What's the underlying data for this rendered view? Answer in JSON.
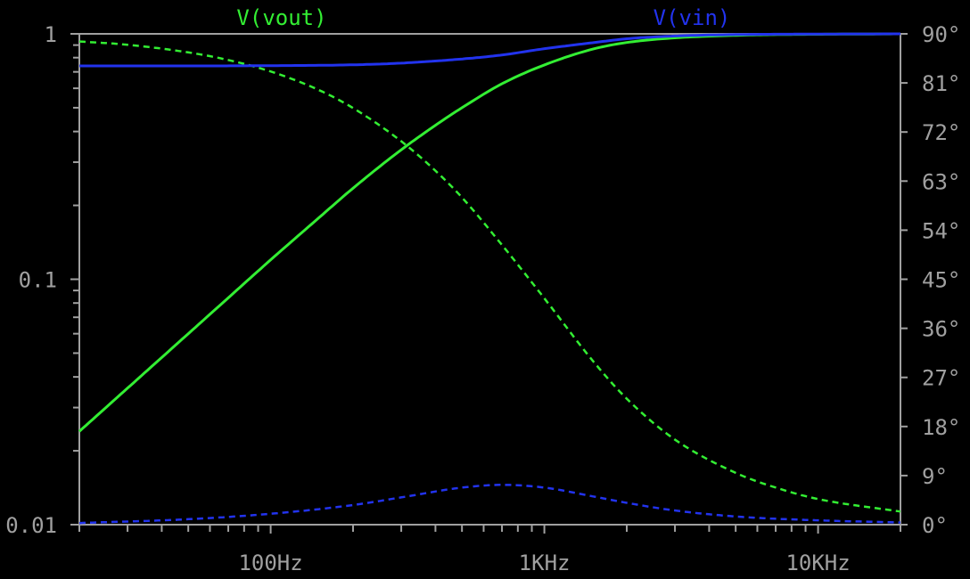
{
  "chart_data": {
    "type": "line",
    "title": "",
    "xlabel": "",
    "ylabel": "",
    "x_scale": "log",
    "xlim": [
      20,
      20000
    ],
    "x_ticks": [
      {
        "value": 100,
        "label": "100Hz"
      },
      {
        "value": 1000,
        "label": "1KHz"
      },
      {
        "value": 10000,
        "label": "10KHz"
      }
    ],
    "y_left": {
      "scale": "log",
      "lim": [
        0.01,
        1
      ],
      "ticks": [
        {
          "value": 1,
          "label": "1"
        },
        {
          "value": 0.1,
          "label": "0.1"
        },
        {
          "value": 0.01,
          "label": "0.01"
        }
      ]
    },
    "y_right": {
      "scale": "linear",
      "unit": "degrees",
      "lim": [
        0,
        90
      ],
      "ticks": [
        {
          "value": 90,
          "label": "90°"
        },
        {
          "value": 81,
          "label": "81°"
        },
        {
          "value": 72,
          "label": "72°"
        },
        {
          "value": 63,
          "label": "63°"
        },
        {
          "value": 54,
          "label": "54°"
        },
        {
          "value": 45,
          "label": "45°"
        },
        {
          "value": 36,
          "label": "36°"
        },
        {
          "value": 27,
          "label": "27°"
        },
        {
          "value": 18,
          "label": "18°"
        },
        {
          "value": 9,
          "label": "9°"
        },
        {
          "value": 0,
          "label": "0°"
        }
      ]
    },
    "grid": false,
    "legend": "top",
    "series": [
      {
        "name": "V(vout)",
        "color": "#33ee33",
        "magnitude": {
          "x": [
            20,
            30,
            50,
            70,
            100,
            150,
            200,
            300,
            400,
            500,
            700,
            1000,
            1500,
            2000,
            3000,
            5000,
            7000,
            10000,
            20000
          ],
          "y": [
            0.024,
            0.036,
            0.06,
            0.084,
            0.12,
            0.178,
            0.235,
            0.337,
            0.424,
            0.5,
            0.626,
            0.747,
            0.866,
            0.922,
            0.963,
            0.986,
            0.993,
            0.996,
            1.0
          ]
        },
        "phase": {
          "x": [
            20,
            30,
            50,
            70,
            100,
            150,
            200,
            300,
            400,
            500,
            700,
            1000,
            1500,
            2000,
            3000,
            5000,
            7000,
            10000,
            20000
          ],
          "y": [
            88.6,
            88.0,
            86.6,
            85.2,
            83.1,
            79.7,
            76.4,
            70.3,
            64.9,
            60.0,
            51.3,
            41.5,
            30.1,
            23.1,
            15.6,
            9.5,
            6.8,
            4.7,
            2.4
          ]
        }
      },
      {
        "name": "V(vin)",
        "color": "#2233ee",
        "magnitude": {
          "x": [
            20,
            50,
            100,
            200,
            300,
            500,
            700,
            1000,
            1500,
            2000,
            3000,
            5000,
            10000,
            20000
          ],
          "y": [
            0.74,
            0.74,
            0.742,
            0.748,
            0.76,
            0.79,
            0.82,
            0.87,
            0.92,
            0.955,
            0.98,
            0.993,
            0.998,
            1.0
          ]
        },
        "phase": {
          "x": [
            20,
            50,
            100,
            200,
            300,
            500,
            700,
            1000,
            1500,
            2000,
            3000,
            5000,
            10000,
            20000
          ],
          "y": [
            0.3,
            1.0,
            2.0,
            3.6,
            5.0,
            6.8,
            7.3,
            6.8,
            5.2,
            4.0,
            2.6,
            1.5,
            0.8,
            0.4
          ]
        }
      }
    ]
  }
}
